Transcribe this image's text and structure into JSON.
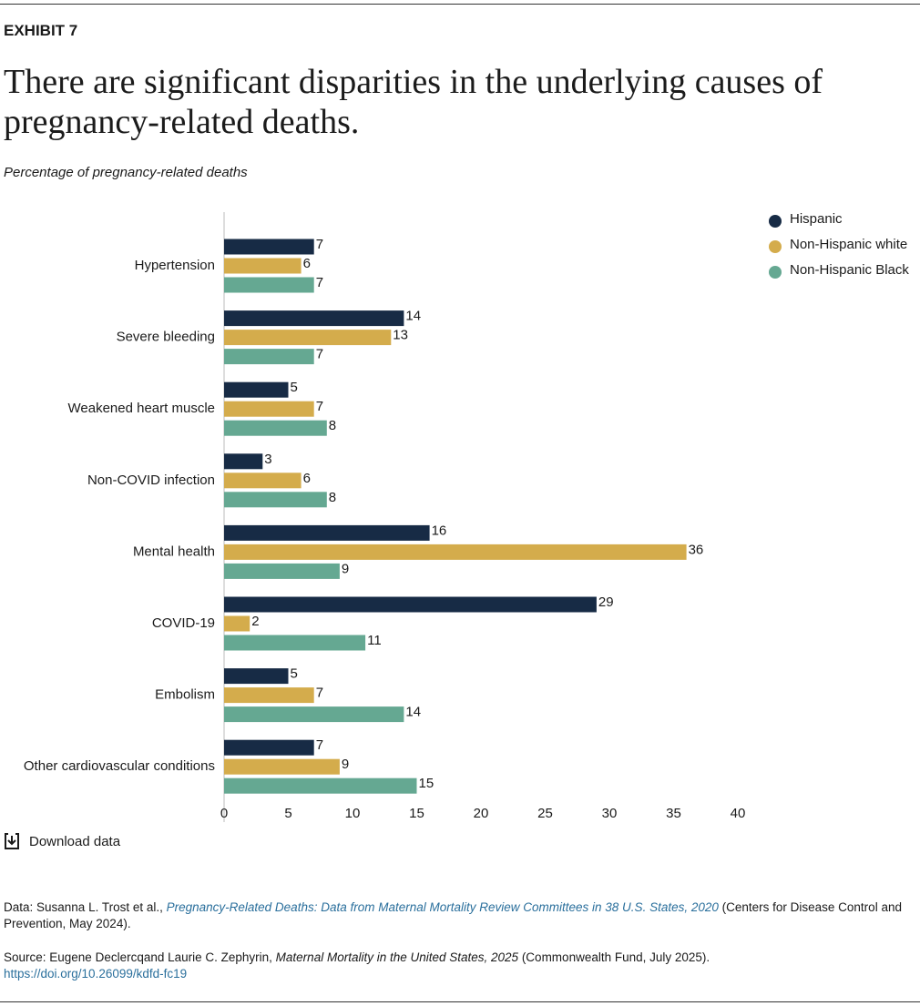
{
  "header": {
    "exhibit": "EXHIBIT 7",
    "download": "Download data"
  },
  "chart_data": {
    "type": "hbar",
    "title": "There are significant disparities in the underlying causes of pregnancy-related deaths.",
    "subtitle": "Percentage of pregnancy-related deaths",
    "categories": [
      "Hypertension",
      "Severe bleeding",
      "Weakened heart muscle",
      "Non-COVID infection",
      "Mental health",
      "COVID-19",
      "Embolism",
      "Other cardiovascular conditions"
    ],
    "series": [
      {
        "name": "Hispanic",
        "color": "#172b45",
        "values": [
          7,
          14,
          5,
          3,
          16,
          29,
          5,
          7
        ]
      },
      {
        "name": "Non-Hispanic white",
        "color": "#d4ac4c",
        "values": [
          6,
          13,
          7,
          6,
          36,
          2,
          7,
          9
        ]
      },
      {
        "name": "Non-Hispanic Black",
        "color": "#65a892",
        "values": [
          7,
          7,
          8,
          8,
          9,
          11,
          14,
          15
        ]
      }
    ],
    "xlim": [
      0,
      40
    ],
    "xticks": [
      0,
      5,
      10,
      15,
      20,
      25,
      30,
      35,
      40
    ],
    "legend": "top-right"
  },
  "footer": {
    "data": [
      "Data: Susanna L. Trost et al., ",
      "Pregnancy-Related Deaths: Data from Maternal Mortality Review Committees in 38 U.S. States, 2020",
      " (Centers for Disease Control and Prevention, May 2024)."
    ],
    "source": [
      "Source: Eugene Declercqand Laurie C. Zephyrin, ",
      "Maternal Mortality in the United States, 2025",
      " (Commonwealth Fund, July 2025)."
    ],
    "doi": "https://doi.org/10.26099/kdfd-fc19"
  }
}
